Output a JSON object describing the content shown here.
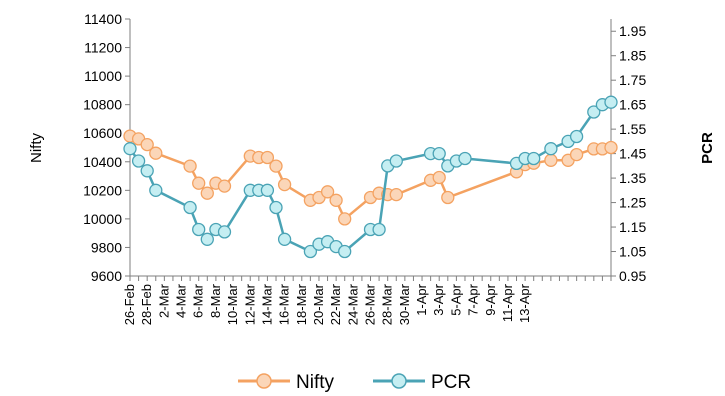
{
  "chart_data": {
    "type": "line",
    "ylabel": "Nifty",
    "y2label": "PCR",
    "ylim": [
      9600,
      11400
    ],
    "yticks": [
      9600,
      9800,
      10000,
      10200,
      10400,
      10600,
      10800,
      11000,
      11200,
      11400
    ],
    "y2lim": [
      0.95,
      2.0
    ],
    "y2ticks": [
      "0.95",
      "1.05",
      "1.15",
      "1.25",
      "1.35",
      "1.45",
      "1.55",
      "1.65",
      "1.75",
      "1.85",
      "1.95"
    ],
    "xticks": [
      "26-Feb",
      "28-Feb",
      "2-Mar",
      "4-Mar",
      "6-Mar",
      "8-Mar",
      "10-Mar",
      "12-Mar",
      "14-Mar",
      "16-Mar",
      "18-Mar",
      "20-Mar",
      "22-Mar",
      "24-Mar",
      "26-Mar",
      "28-Mar",
      "30-Mar",
      "1-Apr",
      "3-Apr",
      "5-Apr",
      "7-Apr",
      "9-Apr",
      "11-Apr",
      "13-Apr"
    ],
    "grid": false,
    "legend_position": "bottom",
    "series": [
      {
        "name": "Nifty",
        "axis": "left",
        "color": "#f4a261",
        "x": [
          0,
          1,
          2,
          3,
          7,
          8,
          9,
          10,
          11,
          14,
          15,
          16,
          17,
          18,
          21,
          22,
          23,
          24,
          25,
          28,
          29,
          30,
          31,
          35,
          36,
          37,
          45,
          46,
          47,
          49,
          51,
          52,
          54,
          55,
          56
        ],
        "values": [
          10580,
          10560,
          10520,
          10460,
          10370,
          10250,
          10180,
          10250,
          10230,
          10440,
          10430,
          10430,
          10370,
          10240,
          10130,
          10150,
          10190,
          10130,
          10000,
          10150,
          10180,
          10170,
          10170,
          10270,
          10290,
          10150,
          10330,
          10380,
          10390,
          10410,
          10410,
          10450,
          10490,
          10490,
          10500
        ]
      },
      {
        "name": "PCR",
        "axis": "right",
        "color": "#7ad0da",
        "x": [
          0,
          1,
          2,
          3,
          7,
          8,
          9,
          10,
          11,
          14,
          15,
          16,
          17,
          18,
          21,
          22,
          23,
          24,
          25,
          28,
          29,
          30,
          31,
          35,
          36,
          37,
          38,
          39,
          45,
          46,
          47,
          49,
          51,
          52,
          54,
          55,
          56
        ],
        "values": [
          1.47,
          1.42,
          1.38,
          1.3,
          1.23,
          1.14,
          1.1,
          1.14,
          1.13,
          1.3,
          1.3,
          1.3,
          1.23,
          1.1,
          1.05,
          1.08,
          1.09,
          1.07,
          1.05,
          1.14,
          1.14,
          1.4,
          1.42,
          1.45,
          1.45,
          1.4,
          1.42,
          1.43,
          1.41,
          1.43,
          1.43,
          1.47,
          1.5,
          1.52,
          1.62,
          1.65,
          1.66
        ]
      }
    ]
  }
}
